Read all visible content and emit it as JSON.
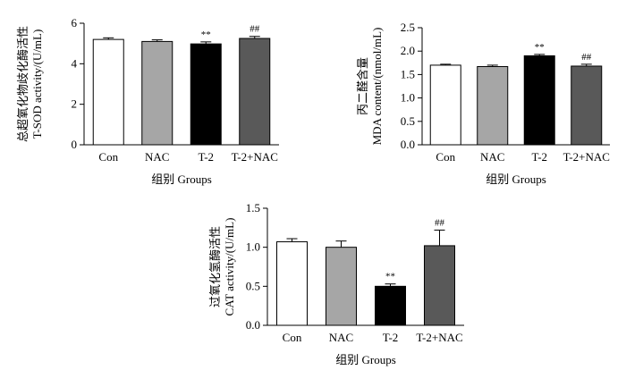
{
  "colors": {
    "fills": [
      "#ffffff",
      "#a6a6a6",
      "#000000",
      "#595959"
    ],
    "axis": "#000000"
  },
  "chart_data": [
    {
      "type": "bar",
      "panel": "T-SOD",
      "categories": [
        "Con",
        "NAC",
        "T-2",
        "T-2+NAC"
      ],
      "values": [
        5.2,
        5.1,
        4.98,
        5.25
      ],
      "errors": [
        0.08,
        0.08,
        0.1,
        0.1
      ],
      "significance": [
        "",
        "",
        "**",
        "##"
      ],
      "ylim": [
        0,
        6
      ],
      "yticks": [
        0,
        2,
        4,
        6
      ],
      "ylabel_cn": "总超氧化物歧化酶活性",
      "ylabel_en": "T-SOD activity/(U/mL)",
      "xlabel": "组别  Groups"
    },
    {
      "type": "bar",
      "panel": "MDA",
      "categories": [
        "Con",
        "NAC",
        "T-2",
        "T-2+NAC"
      ],
      "values": [
        1.7,
        1.67,
        1.9,
        1.68
      ],
      "errors": [
        0.02,
        0.03,
        0.03,
        0.04
      ],
      "significance": [
        "",
        "",
        "**",
        "##"
      ],
      "ylim": [
        0,
        2.5
      ],
      "yticks": [
        0,
        0.5,
        1.0,
        1.5,
        2.0,
        2.5
      ],
      "ylabel_cn": "丙二醛含量",
      "ylabel_en": "MDA content/(nmol/mL)",
      "xlabel": "组别  Groups"
    },
    {
      "type": "bar",
      "panel": "CAT",
      "categories": [
        "Con",
        "NAC",
        "T-2",
        "T-2+NAC"
      ],
      "values": [
        1.07,
        1.0,
        0.5,
        1.02
      ],
      "errors": [
        0.04,
        0.08,
        0.03,
        0.2
      ],
      "significance": [
        "",
        "",
        "**",
        "##"
      ],
      "ylim": [
        0,
        1.5
      ],
      "yticks": [
        0,
        0.5,
        1.0,
        1.5
      ],
      "ylabel_cn": "过氧化氢酶活性",
      "ylabel_en": "CAT activity/(U/mL)",
      "xlabel": "组别  Groups"
    }
  ]
}
